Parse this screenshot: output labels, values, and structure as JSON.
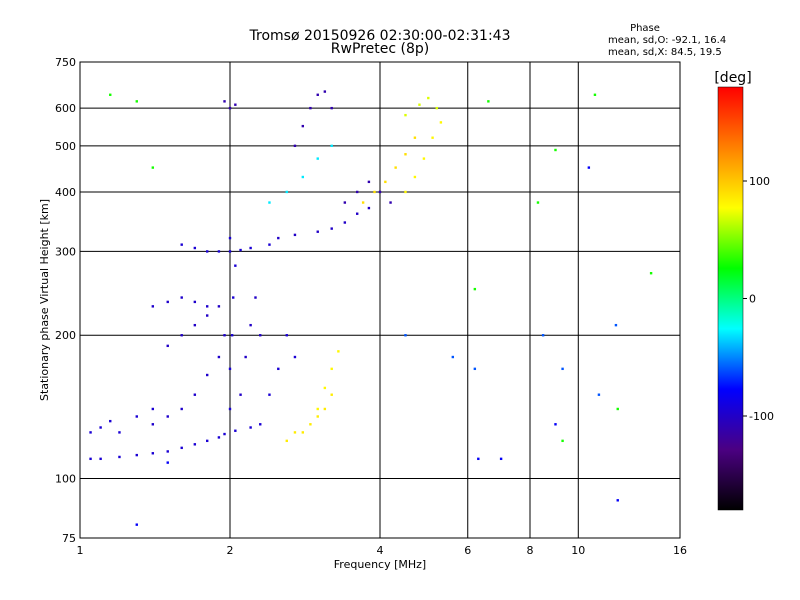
{
  "chart_data": {
    "type": "scatter",
    "title": "Tromsø 20150926 02:30:00-02:31:43",
    "subtitle": "RwPretec (8p)",
    "xlabel": "Frequency [MHz]",
    "ylabel": "Stationary phase Virtual Height [km]",
    "x_scale": "log",
    "y_scale": "log",
    "xlim": [
      1,
      16
    ],
    "ylim": [
      75,
      750
    ],
    "x_ticks": [
      1,
      2,
      4,
      6,
      8,
      10,
      16
    ],
    "y_ticks": [
      75,
      100,
      200,
      300,
      400,
      500,
      600,
      750
    ],
    "x_grid": [
      1,
      2,
      4,
      6,
      8,
      10,
      16
    ],
    "y_grid": [
      100,
      200,
      300,
      400,
      500,
      600
    ],
    "grid": true,
    "phase_header": "Phase",
    "stats": [
      "mean, sd,O:  -92.1, 16.4",
      "mean, sd,X:  84.5, 19.5"
    ],
    "colorbar": {
      "label": "[deg]",
      "range": [
        -180,
        180
      ],
      "ticks": [
        100,
        0,
        -100
      ],
      "colormap": [
        "#000000",
        "#4b0082",
        "#0000ff",
        "#00ffff",
        "#00ff00",
        "#ffff00",
        "#ff8000",
        "#ff0000"
      ]
    },
    "series": [
      {
        "x": [
          1.05,
          1.1,
          1.2,
          1.3,
          1.4,
          1.5,
          1.6,
          1.7,
          1.8,
          1.9,
          1.95,
          2.05,
          2.2,
          2.3
        ],
        "y": [
          110,
          110,
          111,
          112,
          113,
          114,
          116,
          118,
          120,
          122,
          124,
          126,
          128,
          130
        ],
        "phase": -95
      },
      {
        "x": [
          1.05,
          1.1,
          1.15,
          1.2,
          1.3,
          1.4
        ],
        "y": [
          125,
          128,
          132,
          125,
          135,
          140
        ],
        "phase": -95
      },
      {
        "x": [
          1.4,
          1.5,
          1.6,
          1.7,
          1.8,
          1.9,
          1.95
        ],
        "y": [
          130,
          135,
          140,
          150,
          165,
          180,
          200
        ],
        "phase": -98
      },
      {
        "x": [
          1.5,
          1.6,
          1.7,
          1.8,
          1.9
        ],
        "y": [
          190,
          200,
          210,
          220,
          230
        ],
        "phase": -100
      },
      {
        "x": [
          1.4,
          1.5,
          1.6,
          1.7,
          1.8
        ],
        "y": [
          230,
          235,
          240,
          235,
          230
        ],
        "phase": -98
      },
      {
        "x": [
          2.0,
          2.0,
          2.02,
          2.03,
          2.05,
          2.0
        ],
        "y": [
          140,
          170,
          200,
          240,
          280,
          320
        ],
        "phase": -95
      },
      {
        "x": [
          2.1,
          2.15,
          2.2,
          2.25,
          2.3
        ],
        "y": [
          150,
          180,
          210,
          240,
          200
        ],
        "phase": -100
      },
      {
        "x": [
          2.4,
          2.5,
          2.6,
          2.7
        ],
        "y": [
          150,
          170,
          200,
          180
        ],
        "phase": -95
      },
      {
        "x": [
          2.6,
          2.7,
          2.8,
          2.9,
          3.0,
          3.1,
          3.2
        ],
        "y": [
          120,
          125,
          125,
          130,
          135,
          140,
          150
        ],
        "phase": 85
      },
      {
        "x": [
          3.0,
          3.1,
          3.2,
          3.3
        ],
        "y": [
          140,
          155,
          170,
          185
        ],
        "phase": 80
      },
      {
        "x": [
          1.6,
          1.7,
          1.8,
          1.9,
          2.0,
          2.1,
          2.2,
          2.4
        ],
        "y": [
          310,
          305,
          300,
          300,
          300,
          302,
          305,
          310
        ],
        "phase": -95
      },
      {
        "x": [
          2.5,
          2.7,
          3.0,
          3.2,
          3.4,
          3.6,
          3.8
        ],
        "y": [
          320,
          325,
          330,
          335,
          345,
          360,
          370
        ],
        "phase": -100
      },
      {
        "x": [
          2.4,
          2.6,
          2.8,
          3.0,
          3.2
        ],
        "y": [
          380,
          400,
          430,
          470,
          500
        ],
        "phase": -30
      },
      {
        "x": [
          2.7,
          2.8,
          2.9,
          3.0,
          3.1,
          3.2
        ],
        "y": [
          500,
          550,
          600,
          640,
          650,
          600
        ],
        "phase": -110
      },
      {
        "x": [
          3.4,
          3.6,
          3.8,
          4.0,
          4.2
        ],
        "y": [
          380,
          400,
          420,
          400,
          380
        ],
        "phase": -110
      },
      {
        "x": [
          3.7,
          3.9,
          4.1,
          4.3,
          4.5,
          4.7
        ],
        "y": [
          380,
          400,
          420,
          450,
          480,
          520
        ],
        "phase": 90
      },
      {
        "x": [
          4.5,
          4.7,
          4.9,
          5.1,
          5.3
        ],
        "y": [
          400,
          430,
          470,
          520,
          560
        ],
        "phase": 80
      },
      {
        "x": [
          4.5,
          4.8,
          5.0,
          5.2
        ],
        "y": [
          580,
          610,
          630,
          600
        ],
        "phase": 70
      },
      {
        "x": [
          2.0,
          1.95,
          2.05
        ],
        "y": [
          600,
          620,
          610
        ],
        "phase": -110
      },
      {
        "x": [
          1.15,
          1.3,
          1.4,
          6.2,
          6.6,
          8.3,
          9.0,
          9.3,
          10.8,
          12.0,
          14.0
        ],
        "y": [
          640,
          620,
          450,
          250,
          620,
          380,
          490,
          120,
          640,
          140,
          270
        ],
        "phase": 30
      },
      {
        "x": [
          4.5,
          5.6,
          6.2,
          8.5,
          9.3,
          11.0,
          11.9
        ],
        "y": [
          200,
          180,
          170,
          200,
          170,
          150,
          210
        ],
        "phase": -60
      },
      {
        "x": [
          1.3,
          1.5,
          6.3,
          7.0,
          9.0,
          10.5,
          12.0
        ],
        "y": [
          80,
          108,
          110,
          110,
          130,
          450,
          90
        ],
        "phase": -80
      }
    ]
  }
}
